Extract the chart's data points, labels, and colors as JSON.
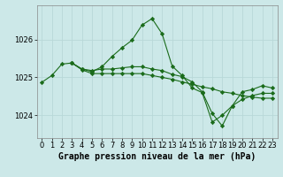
{
  "title": "Graphe pression niveau de la mer (hPa)",
  "bg_color": "#cce8e8",
  "grid_color": "#b8d8d8",
  "line_color": "#1a6b1a",
  "marker_color": "#1a6b1a",
  "xlim": [
    -0.5,
    23.5
  ],
  "ylim": [
    1023.4,
    1026.9
  ],
  "yticks": [
    1024,
    1025,
    1026
  ],
  "xticks": [
    0,
    1,
    2,
    3,
    4,
    5,
    6,
    7,
    8,
    9,
    10,
    11,
    12,
    13,
    14,
    15,
    16,
    17,
    18,
    19,
    20,
    21,
    22,
    23
  ],
  "line1_x": [
    0,
    1,
    2,
    3,
    4,
    5,
    6,
    7,
    8,
    9,
    10,
    11,
    12,
    13,
    14,
    15,
    16,
    17,
    18,
    19,
    20,
    21,
    22,
    23
  ],
  "line1_y": [
    1024.87,
    1025.05,
    1025.35,
    1025.38,
    1025.22,
    1025.15,
    1025.28,
    1025.55,
    1025.78,
    1025.98,
    1026.38,
    1026.55,
    1026.15,
    1025.3,
    1025.05,
    1024.72,
    1024.6,
    1023.82,
    1024.0,
    1024.25,
    1024.62,
    1024.68,
    1024.78,
    1024.72
  ],
  "line2_x": [
    3,
    4,
    5,
    6,
    7,
    8,
    9,
    10,
    11,
    12,
    13,
    14,
    15,
    16,
    17,
    18,
    19,
    20,
    21,
    22,
    23
  ],
  "line2_y": [
    1025.38,
    1025.2,
    1025.1,
    1025.1,
    1025.1,
    1025.1,
    1025.1,
    1025.1,
    1025.05,
    1025.0,
    1024.95,
    1024.88,
    1024.82,
    1024.75,
    1024.7,
    1024.62,
    1024.58,
    1024.52,
    1024.48,
    1024.45,
    1024.45
  ],
  "line3_x": [
    3,
    4,
    5,
    6,
    7,
    8,
    9,
    10,
    11,
    12,
    13,
    14,
    15,
    16,
    17,
    18,
    19,
    20,
    21,
    22,
    23
  ],
  "line3_y": [
    1025.38,
    1025.22,
    1025.18,
    1025.22,
    1025.22,
    1025.25,
    1025.28,
    1025.28,
    1025.22,
    1025.18,
    1025.08,
    1025.02,
    1024.88,
    1024.62,
    1024.05,
    1023.72,
    1024.25,
    1024.42,
    1024.52,
    1024.58,
    1024.58
  ],
  "tick_fontsize": 6,
  "title_fontsize": 7
}
